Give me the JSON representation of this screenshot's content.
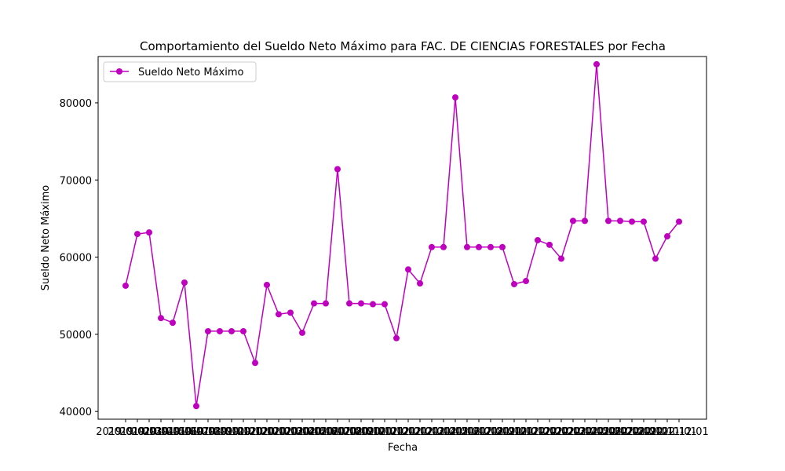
{
  "chart_data": {
    "type": "line",
    "title": "Comportamiento del Sueldo Neto Máximo para FAC. DE CIENCIAS FORESTALES por Fecha",
    "xlabel": "Fecha",
    "ylabel": "Sueldo Neto Máximo",
    "ylim": [
      39000,
      86000
    ],
    "yticks": [
      40000,
      50000,
      60000,
      70000,
      80000
    ],
    "legend": {
      "position": "top-left"
    },
    "grid": false,
    "series": [
      {
        "name": "Sueldo Neto Máximo",
        "color": "#bf00bf",
        "marker": "circle",
        "values": [
          56300,
          63000,
          63200,
          52100,
          51500,
          56700,
          40700,
          50400,
          50400,
          50400,
          50400,
          46300,
          56400,
          52600,
          52800,
          50200,
          54000,
          54000,
          71400,
          54000,
          54000,
          53900,
          53900,
          49500,
          58400,
          56600,
          61300,
          61300,
          80700,
          61300,
          61300,
          61300,
          61300,
          56500,
          56900,
          62200,
          61600,
          59800,
          64700,
          64700,
          85000,
          64700,
          64700,
          64600,
          64600,
          59800,
          62700,
          64600
        ]
      }
    ],
    "x_tick_labels": [
      "2019",
      "2019",
      "2019",
      "2019",
      "2019",
      "2019",
      "2019",
      "2019",
      "2019",
      "2019",
      "2019",
      "2019",
      "2020",
      "2020",
      "2020",
      "2020",
      "2020",
      "2020",
      "2020",
      "2020",
      "2020",
      "2020",
      "2020",
      "2020",
      "2021",
      "2021",
      "2021",
      "2021",
      "2021",
      "2021",
      "2021",
      "2021",
      "2021",
      "2021",
      "2021",
      "2021",
      "2022",
      "2022",
      "2022",
      "2022",
      "2022",
      "2022",
      "2022",
      "2022",
      "2022",
      "2022",
      "2022",
      "2022"
    ],
    "x_tick_suffix": "01"
  }
}
